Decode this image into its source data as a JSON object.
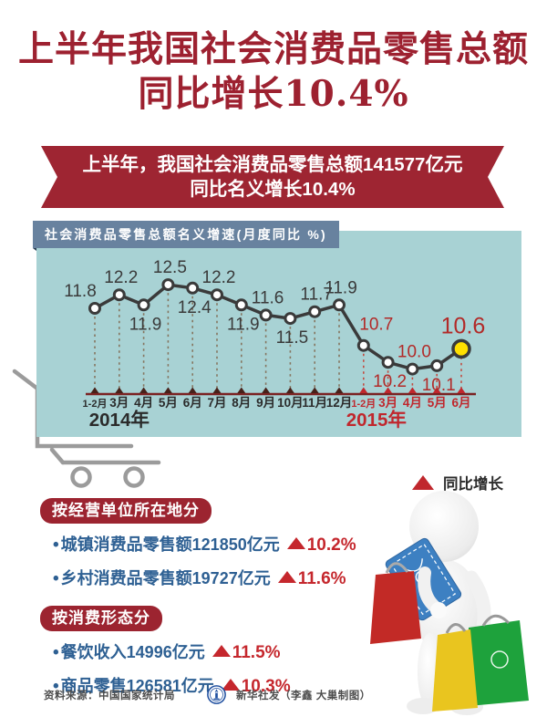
{
  "page_title": {
    "line1": "上半年我国社会消费品零售总额",
    "line2": "同比增长10.4%"
  },
  "banner": {
    "line1": "上半年，我国社会消费品零售总额141577亿元",
    "line2": "同比名义增长10.4%"
  },
  "chart_data": {
    "type": "line",
    "title": "社会消费品零售总额名义增速(月度同比 %)",
    "x_labels": [
      "1-2月",
      "3月",
      "4月",
      "5月",
      "6月",
      "7月",
      "8月",
      "9月",
      "10月",
      "11月",
      "12月",
      "1-2月",
      "3月",
      "4月",
      "5月",
      "6月"
    ],
    "values": [
      11.8,
      12.2,
      11.9,
      12.5,
      12.4,
      12.2,
      11.9,
      11.6,
      11.5,
      11.7,
      11.9,
      10.7,
      10.2,
      10.0,
      10.1,
      10.6
    ],
    "label_side": [
      "above",
      "above",
      "below",
      "above",
      "below",
      "above",
      "below",
      "above",
      "below",
      "above",
      "above",
      "above",
      "below",
      "above",
      "below",
      "above"
    ],
    "year_groups": [
      {
        "label": "2014年",
        "start": 0,
        "end": 10
      },
      {
        "label": "2015年",
        "start": 11,
        "end": 15
      }
    ],
    "highlight_index": 15,
    "ylim": [
      9.8,
      13.0
    ],
    "grid": false,
    "legend_position": "none",
    "colors": {
      "line": "#3a3a3a",
      "point_fill": "#ffffff",
      "highlight_fill": "#ffdf00",
      "y2014_text": "#3a3a3a",
      "y2015_text": "#b22a28",
      "axis": "#7a2222",
      "dash2014": "#85755f",
      "dash2015": "#c24b40",
      "tick2014": "#47211a",
      "tick2015": "#c0272d"
    }
  },
  "legend": {
    "icon": "up-triangle-icon",
    "label": "同比增长",
    "color": "#c0272d"
  },
  "sections": [
    {
      "heading": "按经营单位所在地分",
      "items": [
        {
          "text": "城镇消费品零售额121850亿元",
          "change": "10.2%"
        },
        {
          "text": "乡村消费品零售额19727亿元",
          "change": "11.6%"
        }
      ]
    },
    {
      "heading": "按消费形态分",
      "items": [
        {
          "text": "餐饮收入14996亿元",
          "change": "11.5%"
        },
        {
          "text": "商品零售126581亿元",
          "change": "10.3%"
        }
      ]
    }
  ],
  "footer": {
    "source": "资料来源：中国国家统计局",
    "credit": "新华社发（李鑫 大巢制图）"
  },
  "icons": {
    "cart": "shopping-cart-icon",
    "logo": "xinhua-emblem-icon",
    "legend": "up-triangle-icon"
  },
  "colors": {
    "title_red": "#9d2130",
    "banner_red": "#9e2532",
    "badge_red": "#9c2430",
    "accent_red": "#c5272d",
    "text_blue": "#2e6093",
    "panel_teal": "#a8d2d4",
    "label_blue": "#68829f",
    "fold_navy": "#2b4055",
    "cart_gray": "#9b9b9b"
  }
}
